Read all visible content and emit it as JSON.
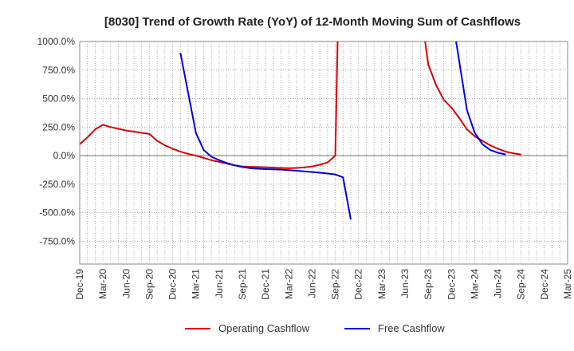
{
  "chart_data": {
    "type": "line",
    "title": "[8030]  Trend of Growth Rate (YoY) of 12-Month Moving Sum of Cashflows",
    "xlabel": "",
    "ylabel": "",
    "ylim": [
      -950,
      1000
    ],
    "yticks": [
      1000,
      750,
      500,
      250,
      0,
      -250,
      -500,
      -750
    ],
    "ytick_labels": [
      "1000.0%",
      "750.0%",
      "500.0%",
      "250.0%",
      "0.0%",
      "-250.0%",
      "-500.0%",
      "-750.0%"
    ],
    "xtick_labels": [
      "Dec-19",
      "Mar-20",
      "Jun-20",
      "Sep-20",
      "Dec-20",
      "Mar-21",
      "Jun-21",
      "Sep-21",
      "Dec-21",
      "Mar-22",
      "Jun-22",
      "Sep-22",
      "Dec-22",
      "Mar-23",
      "Jun-23",
      "Sep-23",
      "Dec-23",
      "Mar-24",
      "Jun-24",
      "Sep-24",
      "Dec-24",
      "Mar-25"
    ],
    "grid": true,
    "legend_position": "bottom",
    "series": [
      {
        "name": "Operating Cashflow",
        "color": "#dd0000",
        "segments": [
          [
            [
              0,
              100
            ],
            [
              1,
              160
            ],
            [
              2,
              230
            ],
            [
              3,
              270
            ],
            [
              4,
              250
            ],
            [
              5,
              235
            ],
            [
              6,
              220
            ],
            [
              7,
              210
            ],
            [
              8,
              200
            ],
            [
              9,
              190
            ],
            [
              10,
              130
            ],
            [
              11,
              90
            ],
            [
              12,
              60
            ],
            [
              13,
              35
            ],
            [
              14,
              15
            ],
            [
              15,
              0
            ],
            [
              16,
              -20
            ],
            [
              17,
              -40
            ],
            [
              18,
              -55
            ],
            [
              19,
              -70
            ],
            [
              20,
              -85
            ],
            [
              21,
              -95
            ],
            [
              22,
              -98
            ],
            [
              23,
              -100
            ],
            [
              24,
              -102
            ],
            [
              25,
              -105
            ],
            [
              26,
              -108
            ],
            [
              27,
              -110
            ],
            [
              28,
              -108
            ],
            [
              29,
              -103
            ],
            [
              30,
              -95
            ],
            [
              31,
              -80
            ],
            [
              32,
              -60
            ],
            [
              33,
              0
            ],
            [
              33.3,
              1000
            ]
          ],
          [
            [
              44.6,
              1000
            ],
            [
              45,
              800
            ],
            [
              46,
              620
            ],
            [
              47,
              490
            ],
            [
              48,
              420
            ],
            [
              49,
              330
            ],
            [
              50,
              230
            ],
            [
              51,
              170
            ],
            [
              52,
              130
            ],
            [
              53,
              90
            ],
            [
              54,
              60
            ],
            [
              55,
              35
            ],
            [
              56,
              20
            ],
            [
              57,
              10
            ]
          ]
        ]
      },
      {
        "name": "Free Cashflow",
        "color": "#0000dd",
        "segments": [
          [
            [
              13,
              900
            ],
            [
              14,
              550
            ],
            [
              15,
              200
            ],
            [
              16,
              50
            ],
            [
              17,
              -10
            ],
            [
              18,
              -40
            ],
            [
              19,
              -65
            ],
            [
              20,
              -85
            ],
            [
              21,
              -100
            ],
            [
              22,
              -110
            ],
            [
              23,
              -115
            ],
            [
              24,
              -118
            ],
            [
              25,
              -120
            ],
            [
              26,
              -123
            ],
            [
              27,
              -127
            ],
            [
              28,
              -132
            ],
            [
              29,
              -138
            ],
            [
              30,
              -144
            ],
            [
              31,
              -150
            ],
            [
              32,
              -157
            ],
            [
              33,
              -165
            ],
            [
              34,
              -190
            ],
            [
              35,
              -560
            ]
          ],
          [
            [
              48.6,
              1000
            ],
            [
              50,
              400
            ],
            [
              51,
              200
            ],
            [
              52,
              100
            ],
            [
              53,
              50
            ],
            [
              54,
              25
            ],
            [
              55,
              10
            ]
          ]
        ]
      }
    ]
  }
}
